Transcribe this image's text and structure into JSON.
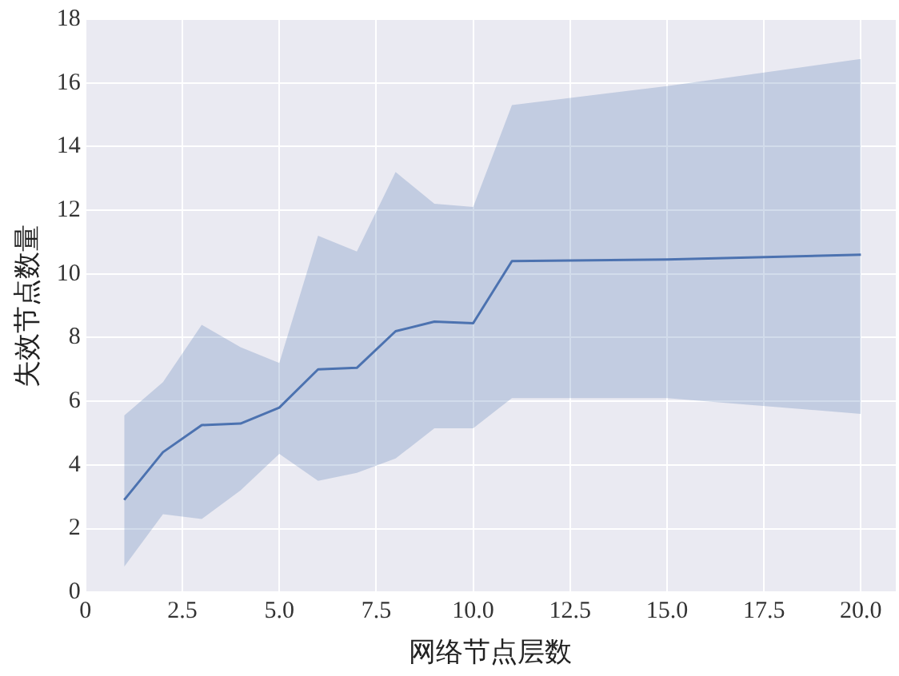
{
  "chart_data": {
    "type": "line",
    "xlabel": "网络节点层数",
    "ylabel": "失效节点数量",
    "x": [
      1,
      2,
      3,
      4,
      5,
      6,
      7,
      8,
      9,
      10,
      11,
      15,
      20
    ],
    "series": [
      {
        "color": "#4c72b0",
        "values": [
          2.9,
          4.4,
          5.25,
          5.3,
          5.8,
          7.0,
          7.05,
          8.2,
          8.5,
          8.45,
          10.4,
          10.45,
          10.6
        ],
        "lower": [
          0.8,
          2.45,
          2.3,
          3.2,
          4.35,
          3.5,
          3.75,
          4.2,
          5.15,
          5.15,
          6.1,
          6.1,
          5.6
        ],
        "upper": [
          5.55,
          6.6,
          8.4,
          7.7,
          7.2,
          11.2,
          10.7,
          13.2,
          12.2,
          12.1,
          15.3,
          15.9,
          16.75
        ]
      }
    ],
    "xlim": [
      0,
      20.9
    ],
    "xticks": [
      {
        "value": 0,
        "label": "0"
      },
      {
        "value": 2.5,
        "label": "2.5"
      },
      {
        "value": 5,
        "label": "5.0"
      },
      {
        "value": 7.5,
        "label": "7.5"
      },
      {
        "value": 10,
        "label": "10.0"
      },
      {
        "value": 12.5,
        "label": "12.5"
      },
      {
        "value": 15,
        "label": "15.0"
      },
      {
        "value": 17.5,
        "label": "17.5"
      },
      {
        "value": 20,
        "label": "20.0"
      }
    ],
    "ylim": [
      0,
      18
    ],
    "yticks": [
      0,
      2,
      4,
      6,
      8,
      10,
      12,
      14,
      16,
      18
    ],
    "grid": true,
    "marker": "none",
    "line_style": "solid"
  }
}
